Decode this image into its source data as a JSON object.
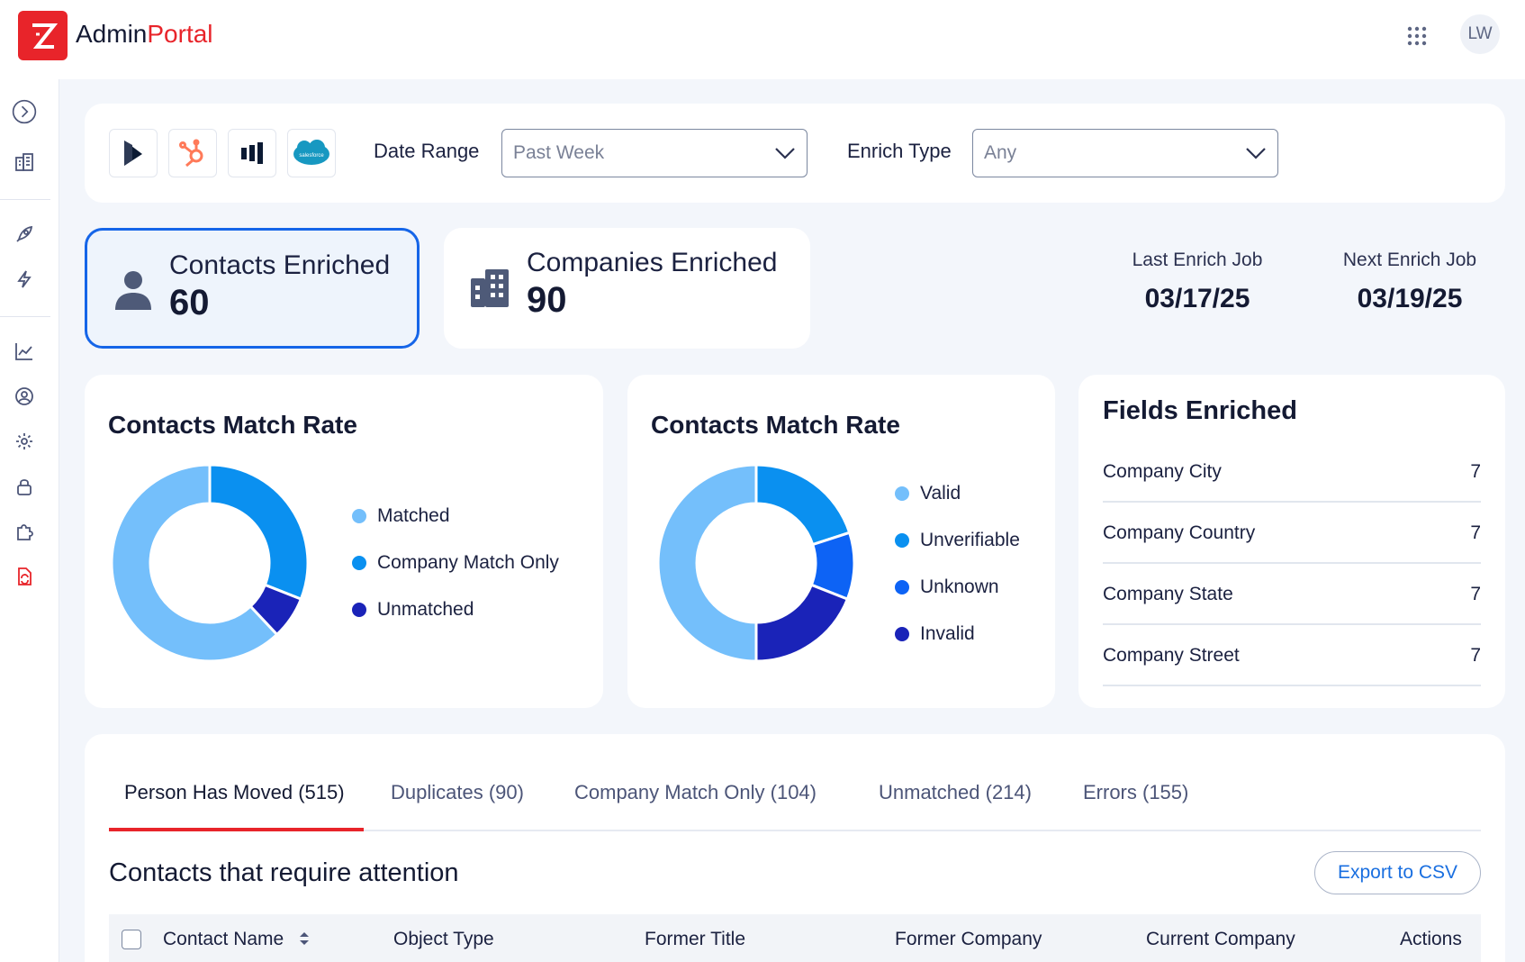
{
  "app": {
    "logo_left": "Admin",
    "logo_right": "Portal",
    "logo_icon": "brand-z-icon"
  },
  "user": {
    "initials": "LW"
  },
  "icons": {
    "apps": "apps-grid-icon",
    "sidebar": [
      "expand-chevron-icon",
      "companies-icon",
      "rocket-icon",
      "lightning-icon",
      "analytics-icon",
      "user-circle-icon",
      "gear-icon",
      "lock-icon",
      "puzzle-icon",
      "file-sync-icon"
    ]
  },
  "filters": {
    "integrations": [
      "dynamics-icon",
      "hubspot-icon",
      "marketo-icon",
      "salesforce-icon"
    ],
    "salesforce_text": "salesforce",
    "date_range_label": "Date Range",
    "date_range_value": "Past Week",
    "enrich_type_label": "Enrich Type",
    "enrich_type_value": "Any"
  },
  "stats": {
    "contacts": {
      "label": "Contacts Enriched",
      "value": "60"
    },
    "companies": {
      "label": "Companies Enriched",
      "value": "90"
    }
  },
  "jobs": {
    "last": {
      "label": "Last Enrich Job",
      "value": "03/17/25"
    },
    "next": {
      "label": "Next Enrich Job",
      "value": "03/19/25"
    }
  },
  "colors": {
    "accent": "#e8242a",
    "primary": "#1565e8",
    "light_blue": "#74bffb",
    "mid_blue": "#0a90f0",
    "bright_blue": "#0d63f5",
    "dark_blue": "#1a23b8"
  },
  "chart_data": [
    {
      "type": "pie",
      "title": "Contacts Match Rate",
      "series": [
        {
          "name": "Matched",
          "value": 62,
          "color": "#74bffb"
        },
        {
          "name": "Company Match Only",
          "value": 31,
          "color": "#0a90f0"
        },
        {
          "name": "Unmatched",
          "value": 7,
          "color": "#1a23b8"
        }
      ]
    },
    {
      "type": "pie",
      "title": "Contacts Match Rate",
      "series": [
        {
          "name": "Valid",
          "value": 50,
          "color": "#74bffb"
        },
        {
          "name": "Unverifiable",
          "value": 20,
          "color": "#0a90f0"
        },
        {
          "name": "Unknown",
          "value": 11,
          "color": "#0d63f5"
        },
        {
          "name": "Invalid",
          "value": 19,
          "color": "#1a23b8"
        }
      ]
    }
  ],
  "fields_enriched": {
    "title": "Fields Enriched",
    "rows": [
      {
        "name": "Company City",
        "value": "7"
      },
      {
        "name": "Company Country",
        "value": "7"
      },
      {
        "name": "Company State",
        "value": "7"
      },
      {
        "name": "Company Street",
        "value": "7"
      }
    ]
  },
  "table": {
    "tabs": [
      "Person Has Moved (515)",
      "Duplicates (90)",
      "Company Match Only (104)",
      "Unmatched (214)",
      "Errors (155)"
    ],
    "active_tab": 0,
    "title": "Contacts that require attention",
    "export_label": "Export to CSV",
    "columns": [
      "Contact Name",
      "Object Type",
      "Former Title",
      "Former Company",
      "Current Company",
      "Actions"
    ]
  }
}
